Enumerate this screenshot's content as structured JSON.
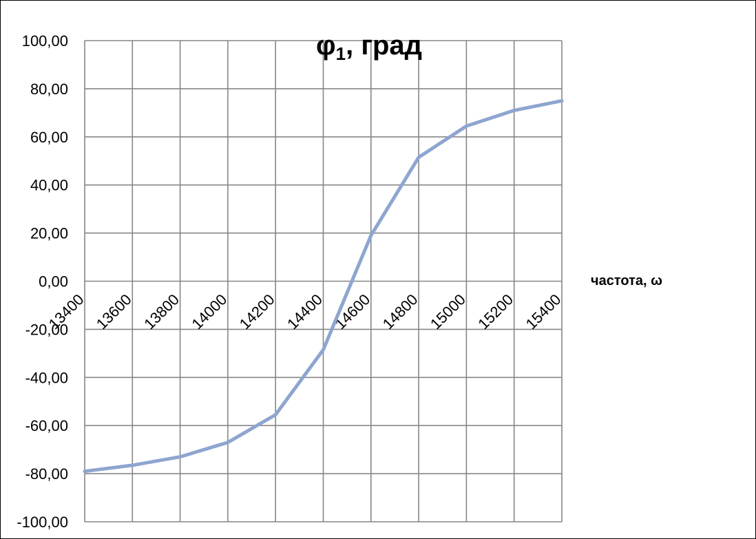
{
  "chart_data": {
    "type": "line",
    "title": {
      "main": "φ",
      "sub": "1",
      "rest": ", град"
    },
    "xlabel": "частота, ω",
    "ylabel": "",
    "categories": [
      "13400",
      "13600",
      "13800",
      "14000",
      "14200",
      "14400",
      "14600",
      "14800",
      "15000",
      "15200",
      "15400"
    ],
    "series": [
      {
        "values": [
          -79,
          -76.5,
          -73,
          -67,
          -55.5,
          -28.5,
          19,
          51.5,
          64.5,
          71,
          75
        ]
      }
    ],
    "ylim": [
      -100,
      100
    ],
    "yticks": [
      "100,00",
      "80,00",
      "60,00",
      "40,00",
      "20,00",
      "0,00",
      "-20,00",
      "-40,00",
      "-60,00",
      "-80,00",
      "-100,00"
    ],
    "ytick_values": [
      100,
      80,
      60,
      40,
      20,
      0,
      -20,
      -40,
      -60,
      -80,
      -100
    ],
    "grid": true,
    "legend": "none",
    "colors": {
      "series": "#8EA5D0",
      "grid": "#868686",
      "text": "#000000"
    }
  }
}
